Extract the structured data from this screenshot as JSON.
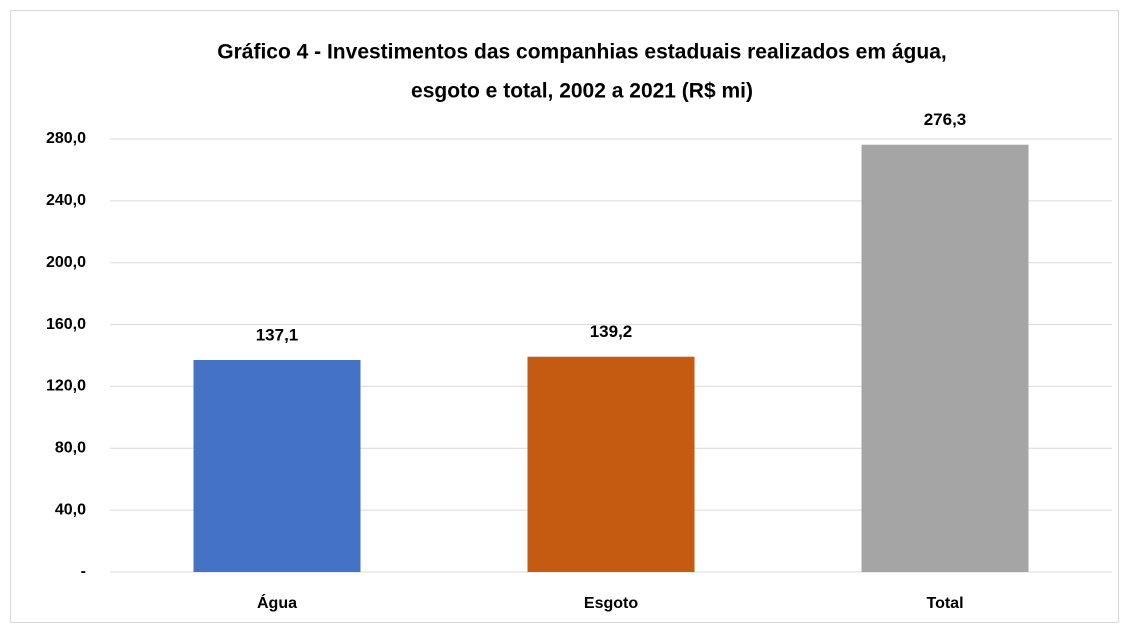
{
  "chart_data": {
    "type": "bar",
    "title": [
      "Gráfico 4 - Investimentos das companhias estaduais realizados em água,",
      "esgoto e total, 2002 a 2021 (R$ mi)"
    ],
    "categories": [
      "Água",
      "Esgoto",
      "Total"
    ],
    "values": [
      137.1,
      139.2,
      276.3
    ],
    "value_labels": [
      "137,1",
      "139,2",
      "276,3"
    ],
    "colors": [
      "#4472c4",
      "#c55a11",
      "#a5a5a5"
    ],
    "ylim": [
      0,
      280
    ],
    "yticks": [
      {
        "value": 0,
        "label": "-"
      },
      {
        "value": 40,
        "label": "40,0"
      },
      {
        "value": 80,
        "label": "80,0"
      },
      {
        "value": 120,
        "label": "120,0"
      },
      {
        "value": 160,
        "label": "160,0"
      },
      {
        "value": 200,
        "label": "200,0"
      },
      {
        "value": 240,
        "label": "240,0"
      },
      {
        "value": 280,
        "label": "280,0"
      }
    ],
    "grid": true
  }
}
